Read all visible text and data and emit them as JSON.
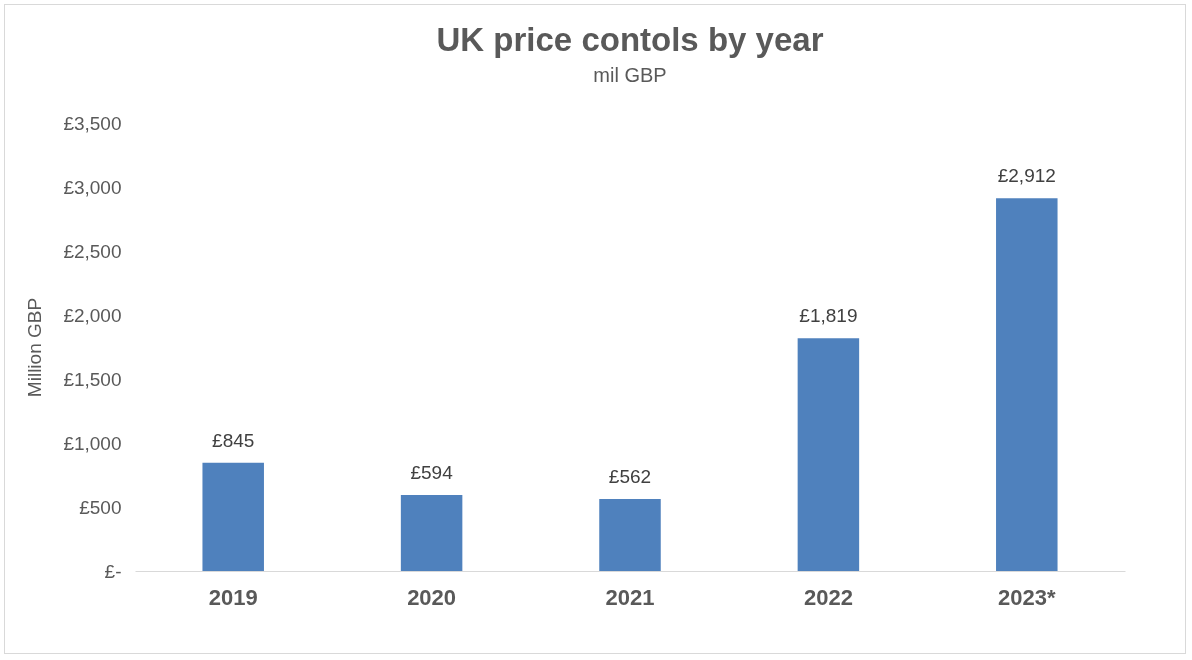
{
  "chart_data": {
    "type": "bar",
    "title": "UK price contols by year",
    "subtitle": "mil GBP",
    "ylabel": "Million GBP",
    "categories": [
      "2019",
      "2020",
      "2021",
      "2022",
      "2023*"
    ],
    "values": [
      845,
      594,
      562,
      1819,
      2912
    ],
    "value_labels": [
      "£845",
      "£594",
      "£562",
      "£1,819",
      "£2,912"
    ],
    "color": "#4f81bd",
    "ylim": [
      0,
      3500
    ],
    "yticks": [
      {
        "value": 0,
        "label": "£-"
      },
      {
        "value": 500,
        "label": "£500"
      },
      {
        "value": 1000,
        "label": "£1,000"
      },
      {
        "value": 1500,
        "label": "£1,500"
      },
      {
        "value": 2000,
        "label": "£2,000"
      },
      {
        "value": 2500,
        "label": "£2,500"
      },
      {
        "value": 3000,
        "label": "£3,000"
      },
      {
        "value": 3500,
        "label": "£3,500"
      }
    ]
  }
}
